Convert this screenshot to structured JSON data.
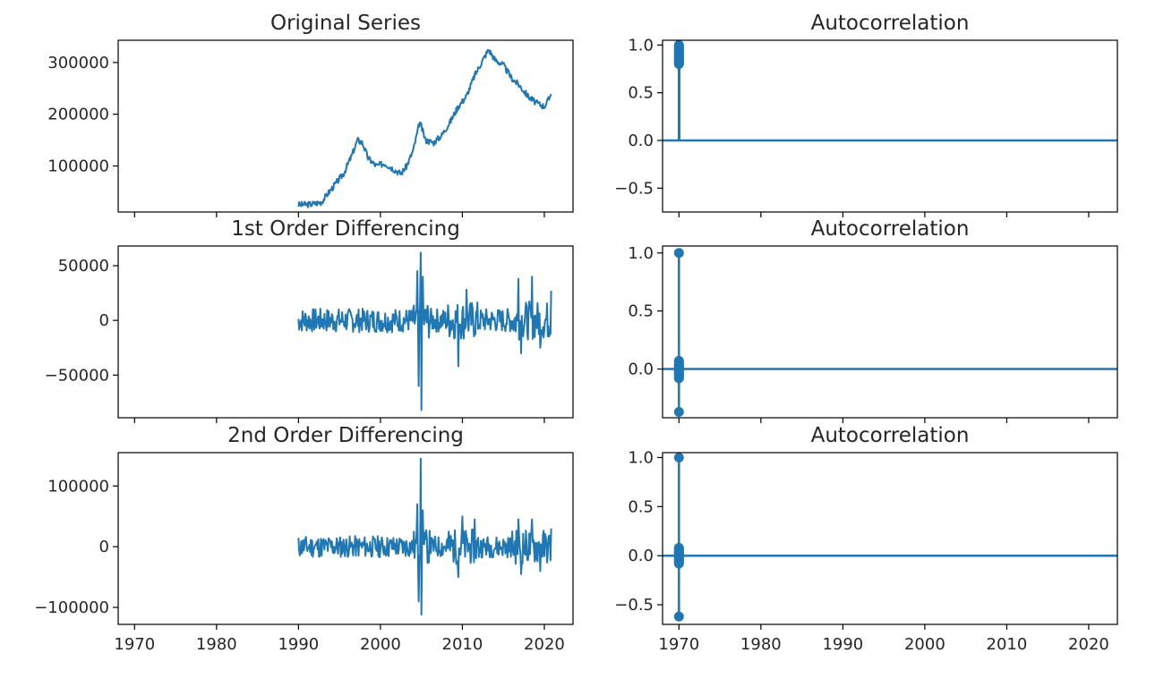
{
  "chart_data": [
    {
      "type": "line",
      "title": "Original Series",
      "xlim": [
        1968.0,
        2023.5
      ],
      "ylim": [
        11000,
        343000
      ],
      "yticks": [
        100000,
        200000,
        300000
      ],
      "ytick_labels": [
        "100000",
        "200000",
        "300000"
      ],
      "xticks": [
        1970,
        1980,
        1990,
        2000,
        2010,
        2020
      ],
      "show_xtick_labels": false,
      "color": "#1f77b4",
      "anchors": [
        [
          1990.0,
          25000
        ],
        [
          1991.5,
          26000
        ],
        [
          1992.8,
          30000
        ],
        [
          1993.5,
          45000
        ],
        [
          1994.5,
          65000
        ],
        [
          1995.5,
          85000
        ],
        [
          1996.5,
          120000
        ],
        [
          1997.2,
          150000
        ],
        [
          1997.8,
          145000
        ],
        [
          1998.5,
          115000
        ],
        [
          1999.5,
          100000
        ],
        [
          2000.5,
          105000
        ],
        [
          2001.5,
          95000
        ],
        [
          2002.5,
          85000
        ],
        [
          2003.2,
          100000
        ],
        [
          2004.0,
          130000
        ],
        [
          2004.8,
          185000
        ],
        [
          2005.5,
          150000
        ],
        [
          2006.5,
          145000
        ],
        [
          2007.5,
          160000
        ],
        [
          2008.5,
          185000
        ],
        [
          2009.5,
          215000
        ],
        [
          2010.5,
          235000
        ],
        [
          2011.5,
          275000
        ],
        [
          2012.5,
          305000
        ],
        [
          2013.2,
          325000
        ],
        [
          2014.0,
          305000
        ],
        [
          2015.0,
          295000
        ],
        [
          2016.0,
          270000
        ],
        [
          2017.0,
          255000
        ],
        [
          2018.0,
          235000
        ],
        [
          2019.0,
          222000
        ],
        [
          2020.0,
          215000
        ],
        [
          2020.6,
          230000
        ],
        [
          2020.9,
          248000
        ]
      ],
      "noise_amp": 6000,
      "seed": 3
    },
    {
      "type": "stem",
      "title": "Autocorrelation",
      "xlim": [
        1968.0,
        2023.5
      ],
      "ylim": [
        -0.75,
        1.05
      ],
      "yticks": [
        -0.5,
        0.0,
        0.5,
        1.0
      ],
      "ytick_labels": [
        "−0.5",
        "0.0",
        "0.5",
        "1.0"
      ],
      "xticks": [
        1970,
        1980,
        1990,
        2000,
        2010,
        2020
      ],
      "show_xtick_labels": false,
      "color": "#1f77b4",
      "stem_x": 1970,
      "values": [
        1.0,
        0.99,
        0.98,
        0.97,
        0.96,
        0.95,
        0.94,
        0.93,
        0.92,
        0.91,
        0.9,
        0.89,
        0.88,
        0.87,
        0.86,
        0.85,
        0.84,
        0.83,
        0.82,
        0.81,
        0.8
      ]
    },
    {
      "type": "line",
      "title": "1st Order Differencing",
      "xlim": [
        1968.0,
        2023.5
      ],
      "ylim": [
        -89000,
        68000
      ],
      "yticks": [
        -50000,
        0,
        50000
      ],
      "ytick_labels": [
        "−50000",
        "0",
        "50000"
      ],
      "xticks": [
        1970,
        1980,
        1990,
        2000,
        2010,
        2020
      ],
      "show_xtick_labels": false,
      "color": "#1f77b4",
      "x_range": [
        1990.0,
        2020.9
      ],
      "noise_amp": 11000,
      "spikes": [
        [
          2004.5,
          45000
        ],
        [
          2004.7,
          -60000
        ],
        [
          2004.9,
          62000
        ],
        [
          2005.0,
          -82000
        ],
        [
          2005.2,
          40000
        ],
        [
          2009.5,
          -42000
        ],
        [
          2010.5,
          28000
        ],
        [
          2016.8,
          38000
        ],
        [
          2017.2,
          -30000
        ],
        [
          2018.5,
          40000
        ],
        [
          2019.5,
          -25000
        ],
        [
          2020.8,
          27000
        ]
      ],
      "seed": 7
    },
    {
      "type": "stem",
      "title": "Autocorrelation",
      "xlim": [
        1968.0,
        2023.5
      ],
      "ylim": [
        -0.42,
        1.06
      ],
      "yticks": [
        0.0,
        0.5,
        1.0
      ],
      "ytick_labels": [
        "0.0",
        "0.5",
        "1.0"
      ],
      "xticks": [
        1970,
        1980,
        1990,
        2000,
        2010,
        2020
      ],
      "show_xtick_labels": false,
      "color": "#1f77b4",
      "stem_x": 1970,
      "values": [
        1.0,
        -0.37,
        0.07,
        0.05,
        0.03,
        0.02,
        -0.02,
        -0.04,
        -0.06,
        -0.08,
        0.04,
        -0.03,
        0.01,
        -0.05,
        0.06,
        -0.01,
        0.02,
        -0.07,
        0.03,
        -0.02,
        0.0
      ]
    },
    {
      "type": "line",
      "title": "2nd Order Differencing",
      "xlim": [
        1968.0,
        2023.5
      ],
      "ylim": [
        -128000,
        155000
      ],
      "yticks": [
        -100000,
        0,
        100000
      ],
      "ytick_labels": [
        "−100000",
        "0",
        "100000"
      ],
      "xticks": [
        1970,
        1980,
        1990,
        2000,
        2010,
        2020
      ],
      "xtick_labels": [
        "1970",
        "1980",
        "1990",
        "2000",
        "2010",
        "2020"
      ],
      "show_xtick_labels": true,
      "color": "#1f77b4",
      "x_range": [
        1990.0,
        2020.9
      ],
      "noise_amp": 18000,
      "spikes": [
        [
          2004.5,
          70000
        ],
        [
          2004.7,
          -90000
        ],
        [
          2004.9,
          145000
        ],
        [
          2005.0,
          -112000
        ],
        [
          2005.2,
          60000
        ],
        [
          2009.5,
          -50000
        ],
        [
          2010.0,
          50000
        ],
        [
          2011.5,
          45000
        ],
        [
          2016.8,
          45000
        ],
        [
          2017.2,
          -45000
        ],
        [
          2018.5,
          45000
        ],
        [
          2019.5,
          -40000
        ],
        [
          2020.8,
          30000
        ]
      ],
      "seed": 11
    },
    {
      "type": "stem",
      "title": "Autocorrelation",
      "xlim": [
        1968.0,
        2023.5
      ],
      "ylim": [
        -0.7,
        1.05
      ],
      "yticks": [
        -0.5,
        0.0,
        0.5,
        1.0
      ],
      "ytick_labels": [
        "−0.5",
        "0.0",
        "0.5",
        "1.0"
      ],
      "xticks": [
        1970,
        1980,
        1990,
        2000,
        2010,
        2020
      ],
      "xtick_labels": [
        "1970",
        "1980",
        "1990",
        "2000",
        "2010",
        "2020"
      ],
      "show_xtick_labels": true,
      "color": "#1f77b4",
      "stem_x": 1970,
      "values": [
        1.0,
        -0.62,
        0.08,
        0.05,
        0.03,
        -0.03,
        -0.05,
        -0.07,
        0.06,
        0.02,
        -0.04,
        0.04,
        -0.02,
        0.01,
        -0.06,
        0.07,
        0.0,
        -0.01,
        0.03,
        -0.08,
        0.02
      ]
    }
  ]
}
